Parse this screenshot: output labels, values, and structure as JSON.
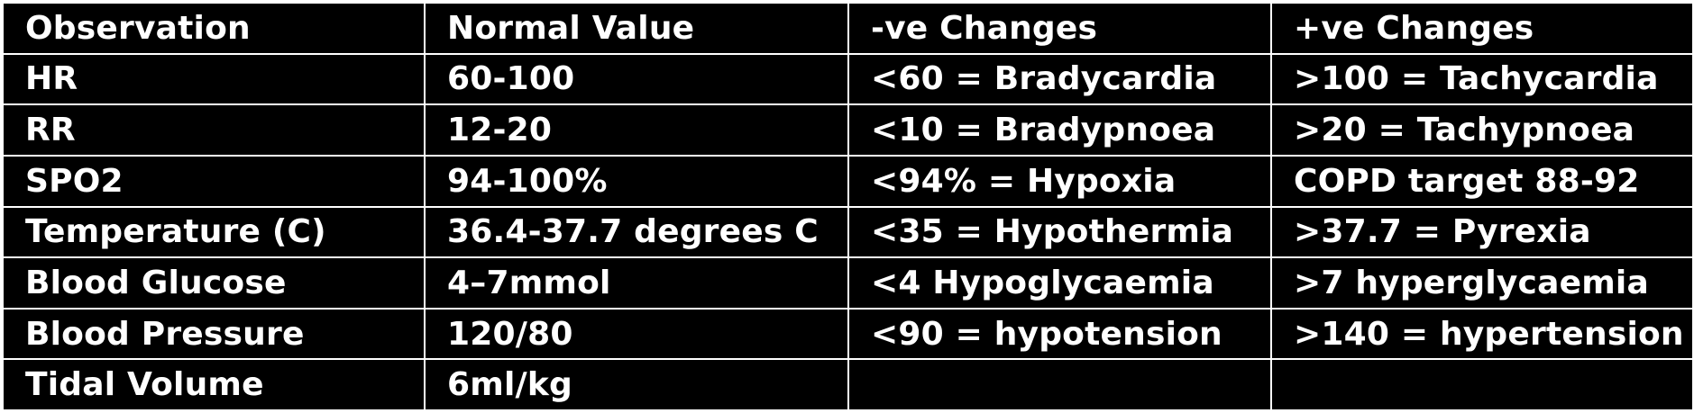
{
  "table": {
    "headers": [
      "Observation",
      "Normal Value",
      "-ve Changes",
      "+ve Changes"
    ],
    "rows": [
      [
        "HR",
        "60-100",
        "<60 = Bradycardia",
        ">100 = Tachycardia"
      ],
      [
        "RR",
        "12-20",
        "<10 = Bradypnoea",
        ">20 = Tachypnoea"
      ],
      [
        "SPO2",
        "94-100%",
        "<94% = Hypoxia",
        "COPD target 88-92"
      ],
      [
        "Temperature (C)",
        "36.4-37.7 degrees C",
        "<35 = Hypothermia",
        ">37.7 = Pyrexia"
      ],
      [
        "Blood Glucose",
        "4–7mmol",
        "<4 Hypoglycaemia",
        ">7 hyperglycaemia"
      ],
      [
        "Blood Pressure",
        "120/80",
        "<90 = hypotension",
        ">140 = hypertension"
      ],
      [
        "Tidal Volume",
        "6ml/kg",
        "",
        ""
      ]
    ]
  },
  "colors": {
    "background": "#000000",
    "text": "#ffffff",
    "border": "#ffffff"
  }
}
